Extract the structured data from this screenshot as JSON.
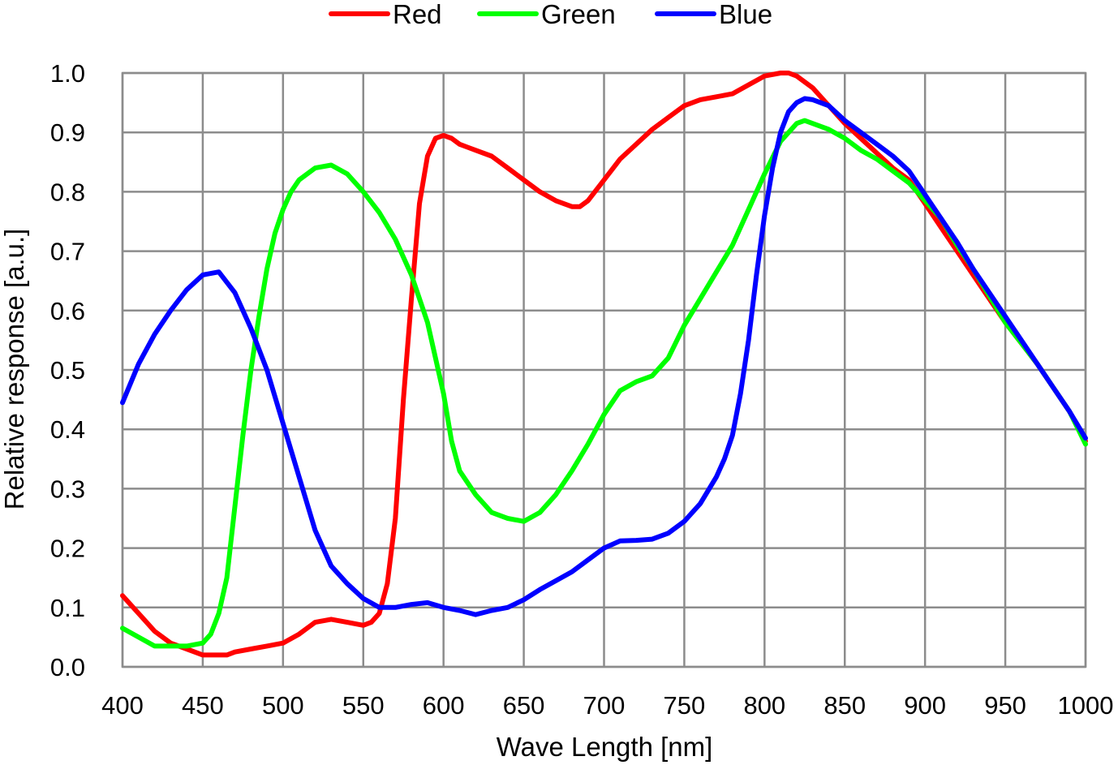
{
  "chart_data": {
    "type": "line",
    "title": "",
    "xlabel": "Wave Length [nm]",
    "ylabel": "Relative response [a.u.]",
    "xlim": [
      400,
      1000
    ],
    "ylim": [
      0.0,
      1.0
    ],
    "xticks": [
      "400",
      "450",
      "500",
      "550",
      "600",
      "650",
      "700",
      "750",
      "800",
      "850",
      "900",
      "950",
      "1000"
    ],
    "yticks": [
      "0.0",
      "0.1",
      "0.2",
      "0.3",
      "0.4",
      "0.5",
      "0.6",
      "0.7",
      "0.8",
      "0.9",
      "1.0"
    ],
    "grid": true,
    "legend": "top-center",
    "series": [
      {
        "name": "Red",
        "color": "#ff0000",
        "x": [
          400,
          410,
          420,
          430,
          440,
          450,
          460,
          465,
          470,
          480,
          490,
          500,
          510,
          520,
          530,
          540,
          550,
          555,
          560,
          565,
          570,
          575,
          580,
          585,
          590,
          595,
          600,
          605,
          610,
          615,
          620,
          630,
          640,
          650,
          660,
          670,
          680,
          685,
          690,
          700,
          710,
          720,
          730,
          740,
          750,
          760,
          770,
          780,
          790,
          800,
          810,
          815,
          820,
          830,
          840,
          850,
          860,
          870,
          880,
          890,
          900,
          910,
          920,
          930,
          940,
          950,
          960,
          970,
          980,
          990,
          1000
        ],
        "y": [
          0.12,
          0.09,
          0.06,
          0.04,
          0.03,
          0.02,
          0.02,
          0.02,
          0.025,
          0.03,
          0.035,
          0.04,
          0.055,
          0.075,
          0.08,
          0.075,
          0.07,
          0.075,
          0.09,
          0.14,
          0.25,
          0.45,
          0.62,
          0.78,
          0.86,
          0.89,
          0.895,
          0.89,
          0.88,
          0.875,
          0.87,
          0.86,
          0.84,
          0.82,
          0.8,
          0.785,
          0.775,
          0.775,
          0.785,
          0.82,
          0.855,
          0.88,
          0.905,
          0.925,
          0.945,
          0.955,
          0.96,
          0.965,
          0.98,
          0.995,
          1.0,
          1.0,
          0.995,
          0.975,
          0.945,
          0.915,
          0.89,
          0.865,
          0.84,
          0.82,
          0.78,
          0.74,
          0.7,
          0.66,
          0.62,
          0.58,
          0.545,
          0.51,
          0.47,
          0.43,
          0.38
        ]
      },
      {
        "name": "Green",
        "color": "#00ff00",
        "x": [
          400,
          410,
          420,
          430,
          440,
          450,
          455,
          460,
          465,
          470,
          475,
          480,
          485,
          490,
          495,
          500,
          505,
          510,
          520,
          530,
          540,
          550,
          560,
          570,
          580,
          590,
          595,
          600,
          605,
          610,
          620,
          630,
          640,
          650,
          660,
          670,
          680,
          690,
          700,
          710,
          720,
          730,
          740,
          750,
          760,
          770,
          780,
          790,
          800,
          810,
          820,
          825,
          830,
          840,
          850,
          860,
          870,
          880,
          890,
          900,
          910,
          920,
          930,
          940,
          950,
          960,
          970,
          980,
          990,
          1000
        ],
        "y": [
          0.065,
          0.05,
          0.035,
          0.035,
          0.035,
          0.04,
          0.055,
          0.09,
          0.15,
          0.27,
          0.39,
          0.5,
          0.59,
          0.67,
          0.73,
          0.77,
          0.8,
          0.82,
          0.84,
          0.845,
          0.83,
          0.8,
          0.765,
          0.72,
          0.66,
          0.58,
          0.52,
          0.46,
          0.38,
          0.33,
          0.29,
          0.26,
          0.25,
          0.245,
          0.26,
          0.29,
          0.33,
          0.375,
          0.425,
          0.465,
          0.48,
          0.49,
          0.52,
          0.575,
          0.62,
          0.665,
          0.71,
          0.77,
          0.83,
          0.885,
          0.915,
          0.92,
          0.915,
          0.905,
          0.89,
          0.87,
          0.855,
          0.835,
          0.815,
          0.785,
          0.755,
          0.71,
          0.67,
          0.625,
          0.58,
          0.545,
          0.51,
          0.47,
          0.43,
          0.375
        ]
      },
      {
        "name": "Blue",
        "color": "#0000ff",
        "x": [
          400,
          410,
          420,
          430,
          440,
          450,
          460,
          470,
          480,
          490,
          500,
          510,
          520,
          530,
          540,
          550,
          560,
          570,
          580,
          590,
          600,
          610,
          620,
          630,
          640,
          650,
          660,
          670,
          680,
          690,
          700,
          710,
          720,
          730,
          740,
          750,
          760,
          770,
          775,
          780,
          785,
          790,
          795,
          800,
          805,
          810,
          815,
          820,
          825,
          830,
          840,
          850,
          860,
          870,
          880,
          890,
          900,
          910,
          920,
          930,
          940,
          950,
          960,
          970,
          980,
          990,
          1000
        ],
        "y": [
          0.445,
          0.51,
          0.56,
          0.6,
          0.635,
          0.66,
          0.665,
          0.63,
          0.57,
          0.5,
          0.41,
          0.32,
          0.23,
          0.17,
          0.14,
          0.115,
          0.1,
          0.1,
          0.105,
          0.108,
          0.1,
          0.095,
          0.088,
          0.095,
          0.1,
          0.113,
          0.13,
          0.145,
          0.16,
          0.18,
          0.2,
          0.212,
          0.213,
          0.215,
          0.225,
          0.245,
          0.275,
          0.32,
          0.35,
          0.39,
          0.46,
          0.55,
          0.66,
          0.76,
          0.84,
          0.9,
          0.935,
          0.95,
          0.957,
          0.955,
          0.945,
          0.92,
          0.9,
          0.88,
          0.86,
          0.835,
          0.795,
          0.755,
          0.715,
          0.67,
          0.63,
          0.59,
          0.55,
          0.51,
          0.47,
          0.43,
          0.385
        ]
      }
    ]
  }
}
